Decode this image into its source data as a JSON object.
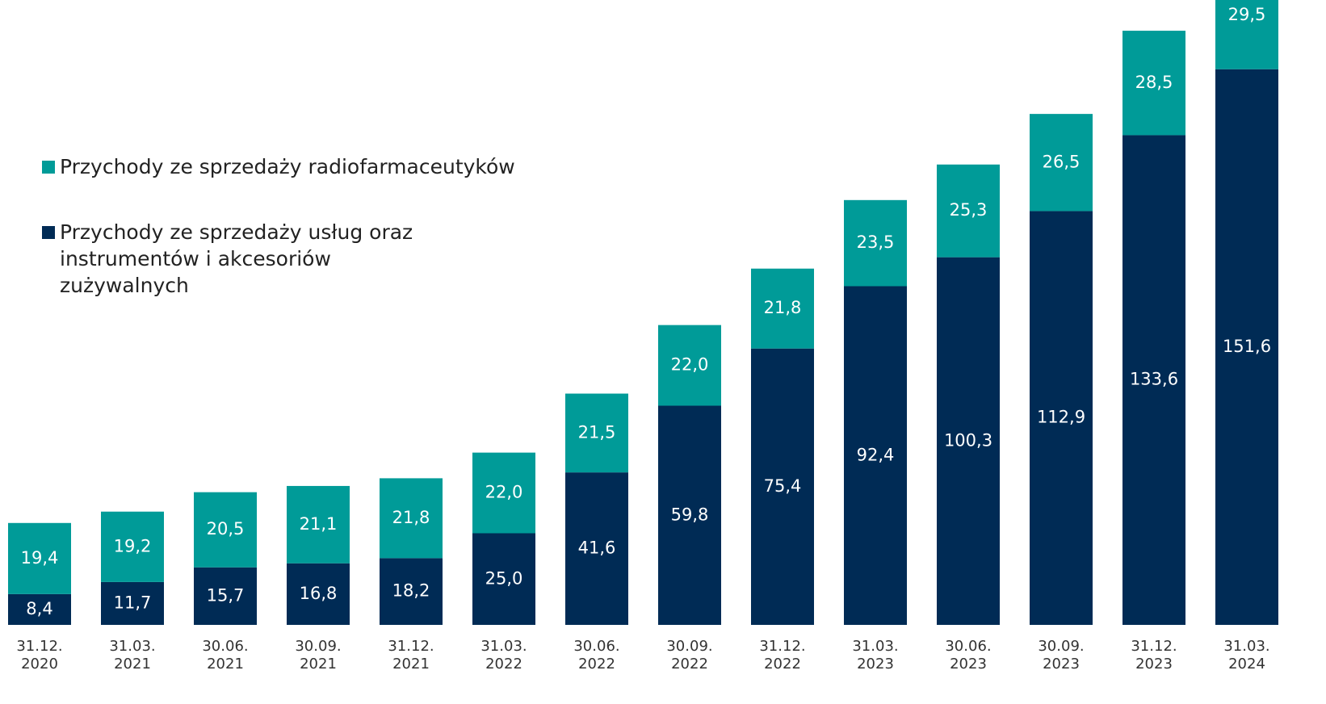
{
  "chart_data": {
    "type": "stacked_bar",
    "categories": [
      "31.12. 2020",
      "31.03. 2021",
      "30.06. 2021",
      "30.09. 2021",
      "31.12. 2021",
      "31.03. 2022",
      "30.06. 2022",
      "30.09. 2022",
      "31.12. 2022",
      "31.03. 2023",
      "30.06. 2023",
      "30.09. 2023",
      "31.12. 2023",
      "31.03. 2024"
    ],
    "series": [
      {
        "name": "Przychody ze sprzedaży usług oraz instrumentów i akcesoriów zużywalnych",
        "color": "#002b55",
        "values": [
          8.4,
          11.7,
          15.7,
          16.8,
          18.2,
          25.0,
          41.6,
          59.8,
          75.4,
          92.4,
          100.3,
          112.9,
          133.6,
          151.6
        ],
        "value_labels": [
          "8,4",
          "11,7",
          "15,7",
          "16,8",
          "18,2",
          "25,0",
          "41,6",
          "59,8",
          "75,4",
          "92,4",
          "100,3",
          "112,9",
          "133,6",
          "151,6"
        ]
      },
      {
        "name": "Przychody ze sprzedaży radiofarmaceutyków",
        "color": "#009b98",
        "values": [
          19.4,
          19.2,
          20.5,
          21.1,
          21.8,
          22.0,
          21.5,
          22.0,
          21.8,
          23.5,
          25.3,
          26.5,
          28.5,
          29.5
        ],
        "value_labels": [
          "19,4",
          "19,2",
          "20,5",
          "21,1",
          "21,8",
          "22,0",
          "21,5",
          "22,0",
          "21,8",
          "23,5",
          "25,3",
          "26,5",
          "28,5",
          "29,5"
        ]
      }
    ],
    "legend": "upper left"
  }
}
